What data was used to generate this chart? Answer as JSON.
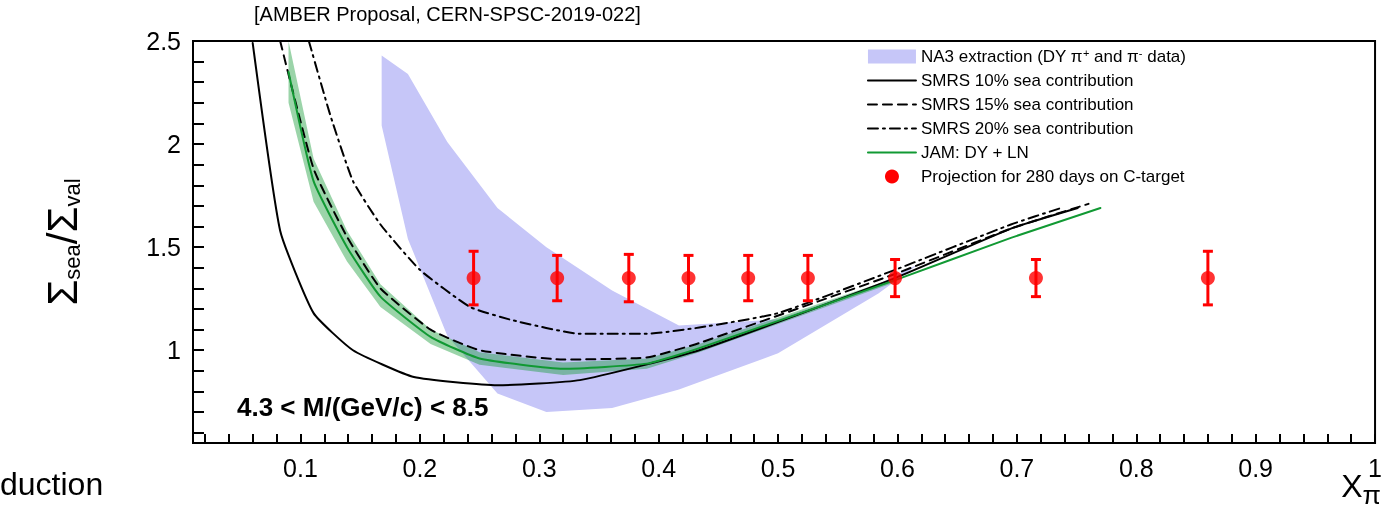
{
  "chart_data": {
    "type": "line",
    "xlabel": "X$_{π}$",
    "ylabel": "Σ$_{sea}$/Σ$_{val}$",
    "annotations": [
      "[AMBER Proposal, CERN-SPSC-2019-022]",
      "4.3 < M/(GeV/c) < 8.5",
      "duction"
    ],
    "xlim": [
      0.01,
      1
    ],
    "ylim": [
      0.55,
      2.5
    ],
    "xticks": [
      {
        "value": 0.02,
        "label": null
      },
      {
        "value": 0.04,
        "label": null
      },
      {
        "value": 0.06,
        "label": null
      },
      {
        "value": 0.08,
        "label": null
      },
      0.1,
      {
        "value": 0.12,
        "label": null
      },
      {
        "value": 0.14,
        "label": null
      },
      {
        "value": 0.16,
        "label": null
      },
      {
        "value": 0.18,
        "label": null
      },
      0.2,
      {
        "value": 0.22,
        "label": null
      },
      {
        "value": 0.24,
        "label": null
      },
      {
        "value": 0.26,
        "label": null
      },
      {
        "value": 0.28,
        "label": null
      },
      0.3,
      {
        "value": 0.32,
        "label": null
      },
      {
        "value": 0.34,
        "label": null
      },
      {
        "value": 0.36,
        "label": null
      },
      {
        "value": 0.38,
        "label": null
      },
      0.4,
      {
        "value": 0.42,
        "label": null
      },
      {
        "value": 0.44,
        "label": null
      },
      {
        "value": 0.46,
        "label": null
      },
      {
        "value": 0.48,
        "label": null
      },
      0.5,
      {
        "value": 0.52,
        "label": null
      },
      {
        "value": 0.54,
        "label": null
      },
      {
        "value": 0.56,
        "label": null
      },
      {
        "value": 0.58,
        "label": null
      },
      0.6,
      {
        "value": 0.62,
        "label": null
      },
      {
        "value": 0.64,
        "label": null
      },
      {
        "value": 0.66,
        "label": null
      },
      {
        "value": 0.68,
        "label": null
      },
      0.7,
      {
        "value": 0.72,
        "label": null
      },
      {
        "value": 0.74,
        "label": null
      },
      {
        "value": 0.76,
        "label": null
      },
      {
        "value": 0.78,
        "label": null
      },
      0.8,
      {
        "value": 0.82,
        "label": null
      },
      {
        "value": 0.84,
        "label": null
      },
      {
        "value": 0.86,
        "label": null
      },
      {
        "value": 0.88,
        "label": null
      },
      0.9,
      {
        "value": 0.92,
        "label": null
      },
      {
        "value": 0.94,
        "label": null
      },
      {
        "value": 0.96,
        "label": null
      },
      {
        "value": 0.98,
        "label": null
      },
      1
    ],
    "yticks": [
      {
        "value": 0.6,
        "label": null
      },
      {
        "value": 0.7,
        "label": null
      },
      {
        "value": 0.8,
        "label": null
      },
      {
        "value": 0.9,
        "label": null
      },
      1,
      {
        "value": 1.1,
        "label": null
      },
      {
        "value": 1.2,
        "label": null
      },
      {
        "value": 1.3,
        "label": null
      },
      {
        "value": 1.4,
        "label": null
      },
      1.5,
      {
        "value": 1.6,
        "label": null
      },
      {
        "value": 1.7,
        "label": null
      },
      {
        "value": 1.8,
        "label": null
      },
      {
        "value": 1.9,
        "label": null
      },
      2,
      {
        "value": 2.1,
        "label": null
      },
      {
        "value": 2.2,
        "label": null
      },
      {
        "value": 2.3,
        "label": null
      },
      {
        "value": 2.4,
        "label": null
      },
      2.5
    ],
    "legend": "top right",
    "series": [
      {
        "name": "NA3 extraction (DY π$^{+}$ and π$^{-}$ data)",
        "type": "area",
        "color": "#c6c6f8",
        "x": [
          0.168,
          0.19,
          0.223,
          0.265,
          0.306,
          0.361,
          0.417,
          0.5,
          0.584,
          0.618
        ],
        "values": [
          null,
          null,
          null,
          null,
          null,
          null,
          null,
          null,
          null,
          null
        ],
        "lower": [
          2.09,
          1.54,
          1.07,
          0.79,
          0.7,
          0.72,
          0.81,
          0.985,
          1.275,
          1.42
        ],
        "upper": [
          2.43,
          2.34,
          2.01,
          1.69,
          1.5,
          1.29,
          1.12,
          1.15,
          1.32,
          1.42
        ]
      },
      {
        "name": "SMRS 10% sea contribution",
        "color": "#000000",
        "line_style": "solid",
        "x": [
          0.06,
          0.083,
          0.111,
          0.144,
          0.195,
          0.265,
          0.334,
          0.434,
          0.598,
          0.695,
          0.751
        ],
        "values": [
          2.49,
          1.58,
          1.18,
          1.0,
          0.87,
          0.83,
          0.855,
          1.0,
          1.35,
          1.59,
          1.69
        ]
      },
      {
        "name": "SMRS 15% sea contribution",
        "color": "#000000",
        "line_style": "dashed",
        "x": [
          0.083,
          0.111,
          0.139,
          0.167,
          0.209,
          0.25,
          0.32,
          0.39,
          0.434,
          0.598,
          0.695,
          0.76
        ],
        "values": [
          2.5,
          1.88,
          1.55,
          1.3,
          1.1,
          1.0,
          0.955,
          0.965,
          1.035,
          1.37,
          1.59,
          1.71
        ]
      },
      {
        "name": "SMRS 20% sea contribution",
        "color": "#000000",
        "line_style": "dashdot",
        "x": [
          0.107,
          0.125,
          0.144,
          0.167,
          0.2,
          0.242,
          0.278,
          0.334,
          0.39,
          0.434,
          0.5,
          0.598,
          0.695,
          0.737
        ],
        "values": [
          2.5,
          2.14,
          1.82,
          1.61,
          1.39,
          1.21,
          1.145,
          1.08,
          1.08,
          1.11,
          1.18,
          1.39,
          1.61,
          1.69
        ]
      },
      {
        "name": "JAM: DY + LN",
        "color": "#119933",
        "line_style": "solid",
        "x": [
          0.09,
          0.111,
          0.139,
          0.167,
          0.209,
          0.25,
          0.32,
          0.39,
          0.434,
          0.598,
          0.695,
          0.77
        ],
        "values": [
          2.35,
          1.82,
          1.5,
          1.26,
          1.065,
          0.96,
          0.91,
          0.935,
          1.01,
          1.34,
          1.545,
          1.69
        ],
        "lower": [
          2.2,
          1.72,
          1.43,
          1.21,
          1.03,
          0.93,
          0.88,
          0.91,
          0.99,
          1.33,
          null,
          null
        ],
        "upper": [
          2.5,
          1.93,
          1.58,
          1.32,
          1.1,
          0.99,
          0.94,
          0.96,
          1.03,
          1.35,
          null,
          null
        ]
      },
      {
        "name": "Projection for 280 days on C-target",
        "type": "scatter",
        "color": "#ff0000",
        "marker": "circle",
        "x": [
          0.245,
          0.315,
          0.375,
          0.425,
          0.475,
          0.525,
          0.598,
          0.716,
          0.86
        ],
        "values": [
          1.35,
          1.35,
          1.35,
          1.35,
          1.35,
          1.35,
          1.35,
          1.35,
          1.35
        ],
        "errors": [
          0.13,
          0.11,
          0.115,
          0.11,
          0.11,
          0.11,
          0.09,
          0.09,
          0.13
        ]
      }
    ]
  }
}
